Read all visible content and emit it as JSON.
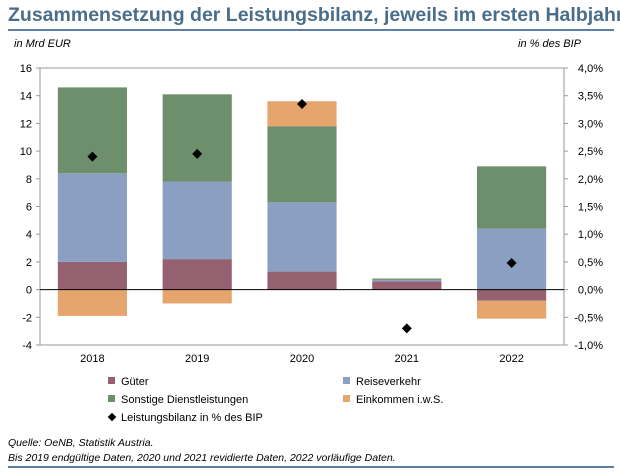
{
  "title": "Zusammensetzung der Leistungsbilanz, jeweils im ersten Halbjahr",
  "unit_left": "in Mrd EUR",
  "unit_right": "in % des BIP",
  "source": "Quelle: OeNB, Statistik Austria.",
  "note": "Bis 2019 endgültige Daten, 2020 und 2021 revidierte Daten, 2022 vorläufige Daten.",
  "colors": {
    "gueter": "#956170",
    "reiseverkehr": "#8a9fc2",
    "dienstleistungen": "#6e8f6c",
    "einkommen": "#e7a56e",
    "marker": "#000000",
    "title": "#4a6d8c"
  },
  "chart_data": {
    "type": "bar",
    "stacked": true,
    "categories": [
      "2018",
      "2019",
      "2020",
      "2021",
      "2022"
    ],
    "series": [
      {
        "name": "Güter",
        "color": "#956170",
        "values": [
          2.0,
          2.2,
          1.3,
          0.6,
          -0.8
        ]
      },
      {
        "name": "Reiseverkehr",
        "color": "#8a9fc2",
        "values": [
          6.4,
          5.6,
          5.0,
          0.1,
          4.4
        ]
      },
      {
        "name": "Sonstige Dienstleistungen",
        "color": "#6e8f6c",
        "values": [
          6.2,
          6.3,
          5.5,
          0.1,
          4.5
        ]
      },
      {
        "name": "Einkommen i.w.S.",
        "color": "#e7a56e",
        "values": [
          -1.9,
          -1.0,
          1.8,
          0.0,
          -1.3
        ]
      }
    ],
    "line_series": {
      "name": "Leistungsbilanz in % des BIP",
      "axis": "right",
      "marker": "diamond",
      "values": [
        2.4,
        2.45,
        3.35,
        -0.7,
        0.48
      ]
    },
    "ylim": [
      -4,
      16
    ],
    "yticks": [
      "-4",
      "-2",
      "0",
      "2",
      "4",
      "6",
      "8",
      "10",
      "12",
      "14",
      "16"
    ],
    "ylim_right": [
      -1.0,
      4.0
    ],
    "yticks_right": [
      "-1,0%",
      "-0,5%",
      "0,0%",
      "0,5%",
      "1,0%",
      "1,5%",
      "2,0%",
      "2,5%",
      "3,0%",
      "3,5%",
      "4,0%"
    ],
    "grid": false,
    "legend_position": "bottom"
  }
}
